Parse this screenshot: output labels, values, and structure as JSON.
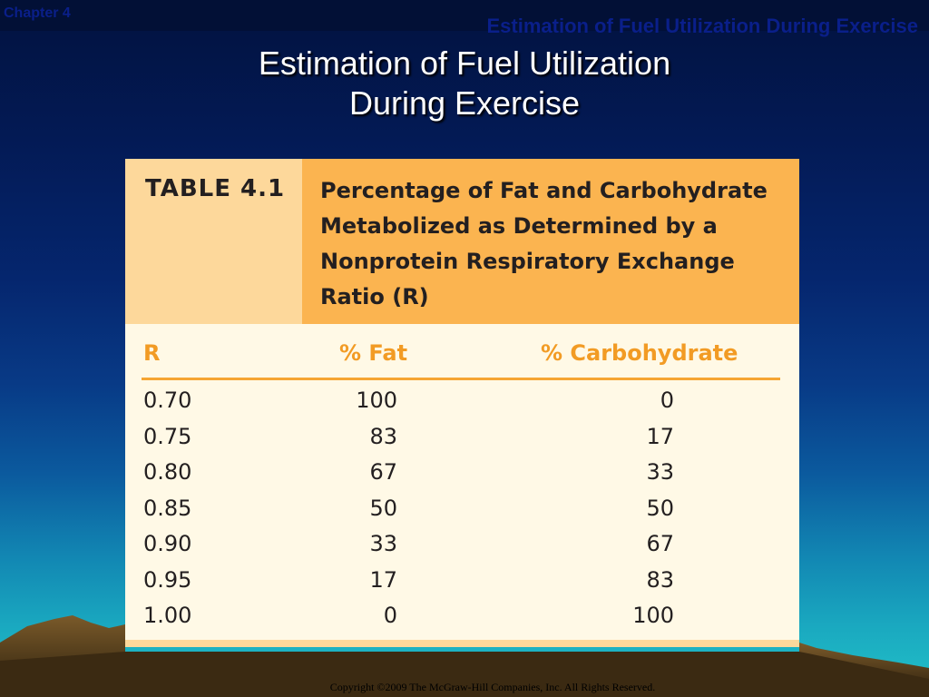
{
  "header": {
    "chapter": "Chapter 4",
    "title_small": "Estimation of Fuel Utilization During Exercise"
  },
  "slide": {
    "title_line1": "Estimation of Fuel Utilization",
    "title_line2": "During Exercise"
  },
  "table": {
    "label": "TABLE 4.1",
    "caption": "Percentage of Fat and Carbohydrate Metabolized as Determined by a Nonprotein Respiratory Exchange Ratio (R)",
    "columns": [
      "R",
      "% Fat",
      "% Carbohydrate"
    ],
    "rows": [
      {
        "r": "0.70",
        "fat": "100",
        "carb": "0"
      },
      {
        "r": "0.75",
        "fat": "83",
        "carb": "17"
      },
      {
        "r": "0.80",
        "fat": "67",
        "carb": "33"
      },
      {
        "r": "0.85",
        "fat": "50",
        "carb": "50"
      },
      {
        "r": "0.90",
        "fat": "33",
        "carb": "67"
      },
      {
        "r": "0.95",
        "fat": "17",
        "carb": "83"
      },
      {
        "r": "1.00",
        "fat": "0",
        "carb": "100"
      }
    ]
  },
  "footer": {
    "copyright": "Copyright ©2009 The McGraw-Hill Companies, Inc. All Rights Reserved."
  },
  "colors": {
    "table_header_left": "#fdd89b",
    "table_header_right": "#fbb450",
    "table_body": "#fff9e6",
    "column_header_text": "#f29b24",
    "rule": "#f6a533"
  }
}
